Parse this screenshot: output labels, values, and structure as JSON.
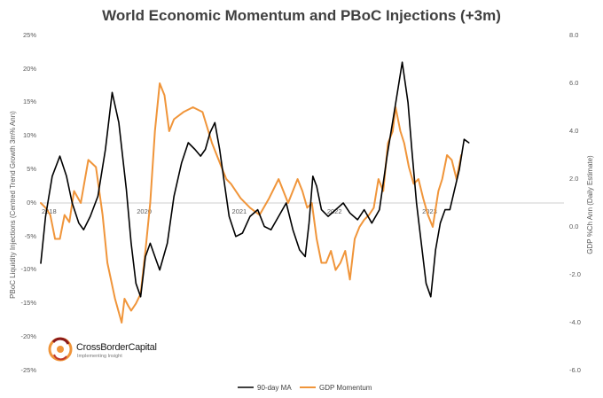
{
  "chart_data": {
    "type": "line",
    "title": "World Economic Momentum and PBoC Injections (+3m)",
    "ylabel": "PBoC Liquidity Injections (Centred Trend Growth 3m% Ann)",
    "y2label": "GDP %Ch Ann (Daily Estimate)",
    "ylim": [
      -25,
      25
    ],
    "y2lim": [
      -6,
      8
    ],
    "xlim": [
      2018.0,
      2023.5
    ],
    "yticks": [
      "25%",
      "20%",
      "15%",
      "10%",
      "5%",
      "0%",
      "-5%",
      "-10%",
      "-15%",
      "-20%",
      "-25%"
    ],
    "y2ticks": [
      "8.0",
      "6.0",
      "4.0",
      "2.0",
      "0.0",
      "-2.0",
      "-4.0",
      "-6.0"
    ],
    "xticks": [
      {
        "x": 2018,
        "label": "2018"
      },
      {
        "x": 2019,
        "label": "2020"
      },
      {
        "x": 2020,
        "label": "2021"
      },
      {
        "x": 2021,
        "label": "2022"
      },
      {
        "x": 2022,
        "label": "2023"
      }
    ],
    "grid": false,
    "legend": "bottom",
    "series": [
      {
        "name": "90-day MA",
        "axis": "left",
        "color": "#000000",
        "x": [
          2018.0,
          2018.05,
          2018.12,
          2018.2,
          2018.27,
          2018.33,
          2018.4,
          2018.45,
          2018.52,
          2018.6,
          2018.68,
          2018.75,
          2018.82,
          2018.9,
          2018.95,
          2019.0,
          2019.05,
          2019.1,
          2019.15,
          2019.2,
          2019.25,
          2019.33,
          2019.4,
          2019.48,
          2019.55,
          2019.62,
          2019.68,
          2019.73,
          2019.78,
          2019.83,
          2019.88,
          2019.93,
          2019.98,
          2020.05,
          2020.12,
          2020.2,
          2020.28,
          2020.35,
          2020.42,
          2020.5,
          2020.58,
          2020.65,
          2020.72,
          2020.78,
          2020.82,
          2020.86,
          2020.9,
          2020.95,
          2021.02,
          2021.1,
          2021.18,
          2021.25,
          2021.33,
          2021.4,
          2021.48,
          2021.56,
          2021.64,
          2021.72,
          2021.8,
          2021.86,
          2021.9,
          2021.95,
          2022.0,
          2022.05,
          2022.1,
          2022.15,
          2022.2,
          2022.25,
          2022.3,
          2022.35,
          2022.4,
          2022.45,
          2022.5
        ],
        "y": [
          -9.0,
          -2.0,
          4.0,
          7.0,
          4.0,
          0.0,
          -3.0,
          -4.0,
          -2.0,
          1.0,
          8.0,
          16.5,
          12.0,
          2.0,
          -6.0,
          -12.0,
          -14.0,
          -8.0,
          -6.0,
          -8.0,
          -10.0,
          -6.0,
          1.0,
          6.0,
          9.0,
          8.0,
          7.0,
          8.0,
          10.5,
          12.0,
          8.0,
          3.0,
          -2.0,
          -5.0,
          -4.5,
          -2.0,
          -1.0,
          -3.5,
          -4.0,
          -2.0,
          0.0,
          -4.0,
          -7.0,
          -8.0,
          -3.0,
          4.0,
          2.5,
          -1.0,
          -2.0,
          -1.0,
          0.0,
          -1.5,
          -2.5,
          -1.0,
          -3.0,
          -1.0,
          7.0,
          14.0,
          21.0,
          15.0,
          8.0,
          0.0,
          -6.0,
          -12.0,
          -14.0,
          -7.0,
          -3.0,
          -1.0,
          -1.0,
          2.0,
          5.0,
          9.5,
          9.0
        ]
      },
      {
        "name": "GDP Momentum",
        "axis": "right",
        "color": "#F0953A",
        "x": [
          2018.0,
          2018.05,
          2018.1,
          2018.15,
          2018.2,
          2018.25,
          2018.3,
          2018.35,
          2018.42,
          2018.5,
          2018.58,
          2018.65,
          2018.7,
          2018.78,
          2018.85,
          2018.88,
          2018.92,
          2018.95,
          2019.0,
          2019.05,
          2019.1,
          2019.15,
          2019.2,
          2019.25,
          2019.3,
          2019.35,
          2019.4,
          2019.5,
          2019.6,
          2019.7,
          2019.8,
          2019.9,
          2019.95,
          2020.0,
          2020.1,
          2020.2,
          2020.3,
          2020.4,
          2020.5,
          2020.6,
          2020.7,
          2020.75,
          2020.8,
          2020.85,
          2020.9,
          2020.95,
          2021.0,
          2021.05,
          2021.1,
          2021.15,
          2021.2,
          2021.25,
          2021.3,
          2021.35,
          2021.4,
          2021.45,
          2021.5,
          2021.55,
          2021.6,
          2021.65,
          2021.7,
          2021.73,
          2021.78,
          2021.82,
          2021.87,
          2021.92,
          2021.97,
          2022.02,
          2022.07,
          2022.12,
          2022.18,
          2022.22,
          2022.27,
          2022.32,
          2022.37,
          2022.42
        ],
        "y": [
          1.0,
          0.8,
          0.5,
          -0.5,
          -0.5,
          0.5,
          0.2,
          1.5,
          1.0,
          2.8,
          2.5,
          0.5,
          -1.5,
          -3.0,
          -4.0,
          -3.0,
          -3.3,
          -3.5,
          -3.2,
          -2.8,
          -1.0,
          1.0,
          4.0,
          6.0,
          5.5,
          4.0,
          4.5,
          4.8,
          5.0,
          4.8,
          3.5,
          2.5,
          2.0,
          1.8,
          1.2,
          0.8,
          0.5,
          1.2,
          2.0,
          1.0,
          2.0,
          1.5,
          0.8,
          1.0,
          -0.5,
          -1.5,
          -1.5,
          -1.0,
          -1.8,
          -1.5,
          -1.0,
          -2.2,
          -0.5,
          0.0,
          0.3,
          0.5,
          0.8,
          2.0,
          1.5,
          3.5,
          4.0,
          5.0,
          4.0,
          3.5,
          2.5,
          1.8,
          2.0,
          1.2,
          0.5,
          0.0,
          1.5,
          2.0,
          3.0,
          2.8,
          2.0,
          3.0
        ]
      }
    ]
  },
  "brand": {
    "name": "CrossBorderCapital",
    "tagline": "Implementing Insight"
  }
}
